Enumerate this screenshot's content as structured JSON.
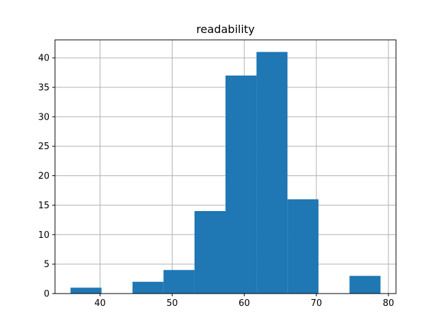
{
  "chart_data": {
    "type": "bar",
    "title": "readability",
    "xlabel": "",
    "ylabel": "",
    "bin_edges": [
      35.9,
      40.2,
      44.5,
      48.8,
      53.1,
      57.4,
      61.7,
      66.0,
      70.3,
      74.6,
      78.9
    ],
    "values": [
      1,
      0,
      2,
      4,
      14,
      37,
      41,
      16,
      0,
      3
    ],
    "xlim": [
      33.75,
      81.05
    ],
    "ylim": [
      0,
      43.05
    ],
    "xticks": [
      40,
      50,
      60,
      70,
      80
    ],
    "yticks": [
      0,
      5,
      10,
      15,
      20,
      25,
      30,
      35,
      40
    ],
    "grid": true,
    "bar_color": "#1f77b4",
    "grid_color": "#b0b0b0"
  }
}
